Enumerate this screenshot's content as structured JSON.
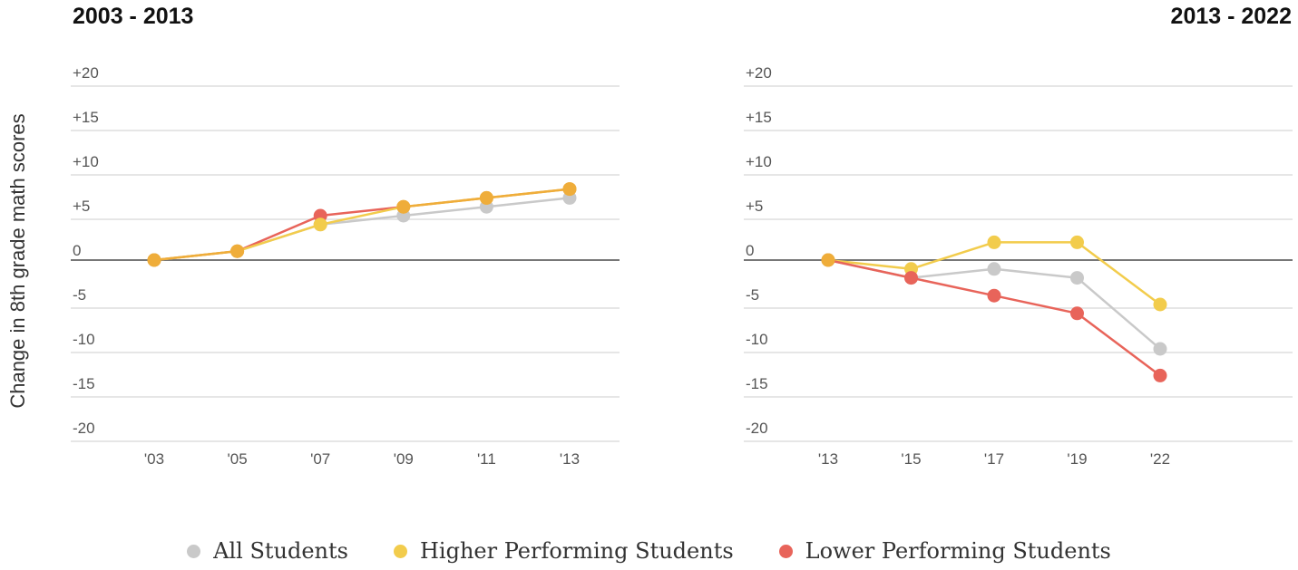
{
  "y_axis_label": "Change in 8th grade math scores",
  "colors": {
    "all": "#c9c9c9",
    "higher": "#f2cc4c",
    "lower": "#e8645a",
    "overlap": "#efad3a",
    "grid": "#dddddd",
    "zero": "#777777"
  },
  "legend": [
    {
      "label": "All Students",
      "color": "#c9c9c9"
    },
    {
      "label": "Higher Performing Students",
      "color": "#f2cc4c"
    },
    {
      "label": "Lower Performing Students",
      "color": "#e8645a"
    }
  ],
  "chart_data": [
    {
      "type": "line",
      "title": "2003 - 2013",
      "ylabel": "Change in 8th grade math scores",
      "ylim": [
        -20,
        20
      ],
      "yticks": [
        20,
        15,
        10,
        5,
        0,
        -5,
        -10,
        -15,
        -20
      ],
      "ytick_labels": [
        "+20",
        "+15",
        "+10",
        "+5",
        "0",
        "-5",
        "-10",
        "-15",
        "-20"
      ],
      "categories": [
        "'03",
        "'05",
        "'07",
        "'09",
        "'11",
        "'13"
      ],
      "grid": true,
      "series": [
        {
          "name": "All Students",
          "key": "all",
          "values": [
            0,
            1,
            4,
            5,
            6,
            7
          ]
        },
        {
          "name": "Lower Performing Students",
          "key": "lower",
          "values": [
            0,
            1,
            5,
            6,
            7,
            8
          ]
        },
        {
          "name": "Higher Performing Students",
          "key": "higher",
          "values": [
            0,
            1,
            4,
            6,
            7,
            8
          ]
        }
      ]
    },
    {
      "type": "line",
      "title": "2013 - 2022",
      "ylim": [
        -20,
        20
      ],
      "yticks": [
        20,
        15,
        10,
        5,
        0,
        -5,
        -10,
        -15,
        -20
      ],
      "ytick_labels": [
        "+20",
        "+15",
        "+10",
        "+5",
        "0",
        "-5",
        "-10",
        "-15",
        "-20"
      ],
      "categories": [
        "'13",
        "'15",
        "'17",
        "'19",
        "'22"
      ],
      "grid": true,
      "series": [
        {
          "name": "All Students",
          "key": "all",
          "values": [
            0,
            -2,
            -1,
            -2,
            -10
          ]
        },
        {
          "name": "Higher Performing Students",
          "key": "higher",
          "values": [
            0,
            -1,
            2,
            2,
            -5
          ]
        },
        {
          "name": "Lower Performing Students",
          "key": "lower",
          "values": [
            0,
            -2,
            -4,
            -6,
            -13
          ]
        }
      ]
    }
  ]
}
